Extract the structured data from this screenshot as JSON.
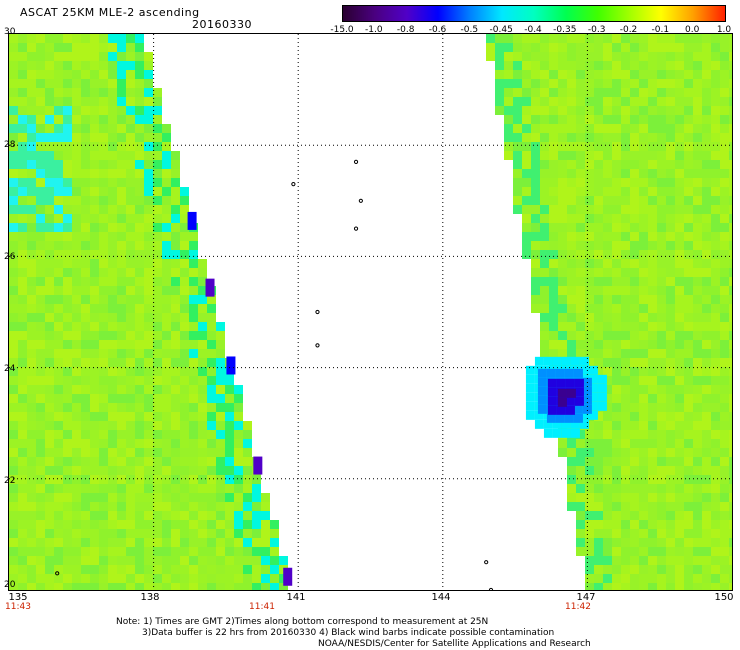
{
  "header": {
    "title": "ASCAT 25KM MLE-2 ascending",
    "date": "20160330"
  },
  "colorbar": {
    "labels": [
      "-15.0",
      "-1.0",
      "-0.8",
      "-0.6",
      "-0.5",
      "-0.45",
      "-0.4",
      "-0.35",
      "-0.3",
      "-0.2",
      "-0.1",
      "0.0",
      "1.0"
    ],
    "colors": [
      "#2a0030",
      "#4a0080",
      "#5000c8",
      "#0000ff",
      "#0080ff",
      "#00e8ff",
      "#00ffc0",
      "#00ff50",
      "#40ff00",
      "#a0ff00",
      "#ffff00",
      "#ffa000",
      "#ff2000"
    ]
  },
  "chart_data": {
    "type": "heatmap",
    "title": "ASCAT 25KM MLE-2 ascending",
    "date": "20160330",
    "x_range": [
      135,
      150
    ],
    "y_range": [
      20,
      30
    ],
    "x_ticks": [
      "135",
      "138",
      "141",
      "144",
      "147",
      "150"
    ],
    "y_ticks": [
      "30",
      "28",
      "26",
      "24",
      "22",
      "20"
    ],
    "time_labels": [
      {
        "lon": 135,
        "text": "11:43"
      },
      {
        "lon": 141,
        "text": "11:41"
      },
      {
        "lon": 147,
        "text": "11:42"
      }
    ],
    "grid": true,
    "swaths": [
      {
        "name": "west",
        "lon_min": 135,
        "lon_at_lat30": 137.9,
        "lon_at_lat20": 141.0
      },
      {
        "name": "east",
        "lon_at_lat30": 144.8,
        "lon_at_lat20": 146.9,
        "lon_max": 150
      }
    ],
    "dominant_value_range": [
      -0.35,
      -0.2
    ],
    "features": [
      {
        "swath": "east",
        "lat": 23.6,
        "lon": 146.7,
        "value_range": [
          -1.0,
          -0.6
        ]
      },
      {
        "swath": "west",
        "lat": 27.8,
        "lon": 135.6,
        "value_range": [
          -0.45,
          -0.4
        ]
      }
    ]
  },
  "notes": {
    "line1": "Note: 1) Times are GMT 2)Times along bottom correspond to measurement at 25N",
    "line2": "3)Data buffer is 22 hrs from 20160330 4) Black wind barbs indicate possible contamination",
    "credit": "NOAA/NESDIS/Center for Satellite Applications and Research"
  }
}
